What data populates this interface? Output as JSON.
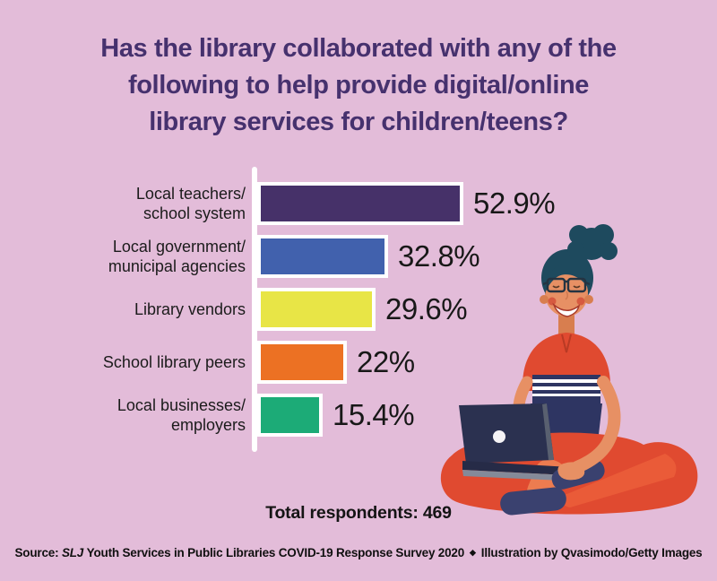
{
  "page": {
    "background_color": "#e3bcd9",
    "title_color": "#46316e"
  },
  "title_lines": [
    "Has the library collaborated with any of the",
    "following to help provide digital/online",
    "library services for children/teens?"
  ],
  "chart_data": {
    "type": "bar",
    "orientation": "horizontal",
    "title": "Has the library collaborated with any of the following to help provide digital/online library services for children/teens?",
    "categories": [
      "Local teachers/\nschool system",
      "Local government/\nmunicipal agencies",
      "Library vendors",
      "School library peers",
      "Local businesses/\nemployers"
    ],
    "values": [
      52.9,
      32.8,
      29.6,
      22,
      15.4
    ],
    "value_labels": [
      "52.9%",
      "32.8%",
      "29.6%",
      "22%",
      "15.4%"
    ],
    "bar_colors": [
      "#463169",
      "#4161ad",
      "#e8e546",
      "#ec7123",
      "#1cab77"
    ],
    "bar_border_color": "#ffffff",
    "axis_color": "#ffffff",
    "xlim": [
      0,
      55
    ],
    "grid": false,
    "legend": "none",
    "total_label": "Total respondents: 469"
  },
  "footer": {
    "source_prefix": "Source:",
    "source_journal": "SLJ",
    "source_text": "Youth Services in Public Libraries COVID-19 Response Survey 2020",
    "separator": "◆",
    "credit": "Illustration by Qvasimodo/Getty Images"
  },
  "illustration": {
    "alt": "Illustration of a smiling woman with a top bun and glasses sitting cross-legged using a laptop",
    "colors": {
      "skin": "#e79064",
      "skin_shadow": "#d87e4f",
      "hair": "#1e4a5e",
      "outfit_red": "#e04a30",
      "outfit_navy": "#2e3562",
      "stripe_white": "#ffffff",
      "laptop_body": "#2b3150",
      "laptop_deck": "#262b47",
      "laptop_edge": "#848a99",
      "laptop_bezel": "#596070",
      "shoes_navy": "#3a416f",
      "cheek": "#d4543c",
      "leg_light": "#ed7c50",
      "leg_shade": "#ea5b38",
      "logo_dot": "#f5f3f5"
    }
  }
}
